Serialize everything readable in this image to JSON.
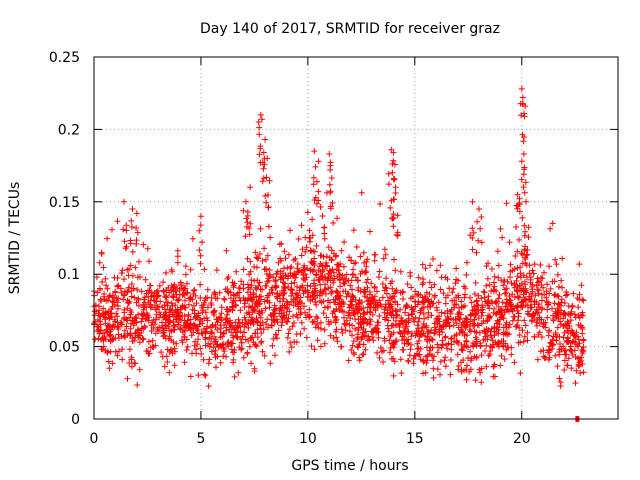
{
  "chart_data": {
    "type": "scatter",
    "title": "Day 140 of 2017, SRMTID for receiver graz",
    "xlabel": "GPS time / hours",
    "ylabel": "SRMTID / TECUs",
    "xlim": [
      0,
      24.5
    ],
    "ylim": [
      0,
      0.25
    ],
    "xticks": [
      0,
      5,
      10,
      15,
      20
    ],
    "xtick_labels": [
      "0",
      "5",
      "10",
      "15",
      "20"
    ],
    "yticks": [
      0,
      0.05,
      0.1,
      0.15,
      0.2,
      0.25
    ],
    "ytick_labels": [
      "0",
      "0.05",
      "0.1",
      "0.15",
      "0.2",
      "0.25"
    ],
    "grid": true,
    "marker": "+",
    "color": "#ff0000",
    "series": [
      {
        "name": "SRMTID",
        "description": "dense cloud of measurements between 0 and ~22.9 h, mostly 0.02–0.12 TECU with spikes",
        "envelope": [
          {
            "t": 0.0,
            "mean": 0.065,
            "spread": 0.025
          },
          {
            "t": 1.0,
            "mean": 0.07,
            "spread": 0.028
          },
          {
            "t": 2.0,
            "mean": 0.068,
            "spread": 0.028
          },
          {
            "t": 3.0,
            "mean": 0.07,
            "spread": 0.025
          },
          {
            "t": 4.0,
            "mean": 0.072,
            "spread": 0.025
          },
          {
            "t": 5.0,
            "mean": 0.065,
            "spread": 0.025
          },
          {
            "t": 6.0,
            "mean": 0.065,
            "spread": 0.025
          },
          {
            "t": 7.0,
            "mean": 0.07,
            "spread": 0.028
          },
          {
            "t": 8.0,
            "mean": 0.082,
            "spread": 0.03
          },
          {
            "t": 9.0,
            "mean": 0.085,
            "spread": 0.028
          },
          {
            "t": 10.0,
            "mean": 0.09,
            "spread": 0.03
          },
          {
            "t": 11.0,
            "mean": 0.09,
            "spread": 0.03
          },
          {
            "t": 12.0,
            "mean": 0.078,
            "spread": 0.028
          },
          {
            "t": 13.0,
            "mean": 0.07,
            "spread": 0.028
          },
          {
            "t": 14.0,
            "mean": 0.068,
            "spread": 0.028
          },
          {
            "t": 15.0,
            "mean": 0.068,
            "spread": 0.027
          },
          {
            "t": 16.0,
            "mean": 0.065,
            "spread": 0.026
          },
          {
            "t": 17.0,
            "mean": 0.065,
            "spread": 0.027
          },
          {
            "t": 18.0,
            "mean": 0.062,
            "spread": 0.026
          },
          {
            "t": 19.0,
            "mean": 0.068,
            "spread": 0.028
          },
          {
            "t": 20.0,
            "mean": 0.085,
            "spread": 0.03
          },
          {
            "t": 21.0,
            "mean": 0.075,
            "spread": 0.028
          },
          {
            "t": 22.0,
            "mean": 0.062,
            "spread": 0.026
          },
          {
            "t": 22.9,
            "mean": 0.055,
            "spread": 0.022
          }
        ],
        "spikes": [
          {
            "t": 1.4,
            "y": 0.15
          },
          {
            "t": 1.8,
            "y": 0.145
          },
          {
            "t": 2.0,
            "y": 0.142
          },
          {
            "t": 5.0,
            "y": 0.14
          },
          {
            "t": 7.1,
            "y": 0.15
          },
          {
            "t": 7.3,
            "y": 0.16
          },
          {
            "t": 7.8,
            "y": 0.21
          },
          {
            "t": 7.85,
            "y": 0.207
          },
          {
            "t": 8.0,
            "y": 0.193
          },
          {
            "t": 8.1,
            "y": 0.18
          },
          {
            "t": 10.3,
            "y": 0.185
          },
          {
            "t": 10.5,
            "y": 0.178
          },
          {
            "t": 11.0,
            "y": 0.183
          },
          {
            "t": 11.05,
            "y": 0.175
          },
          {
            "t": 13.9,
            "y": 0.186
          },
          {
            "t": 14.0,
            "y": 0.184
          },
          {
            "t": 13.95,
            "y": 0.17
          },
          {
            "t": 14.1,
            "y": 0.16
          },
          {
            "t": 17.7,
            "y": 0.15
          },
          {
            "t": 18.0,
            "y": 0.145
          },
          {
            "t": 19.8,
            "y": 0.155
          },
          {
            "t": 20.0,
            "y": 0.228
          },
          {
            "t": 20.05,
            "y": 0.222
          },
          {
            "t": 20.1,
            "y": 0.183
          },
          {
            "t": 20.0,
            "y": 0.178
          },
          {
            "t": 20.2,
            "y": 0.15
          }
        ],
        "outlier_at_zero": {
          "t": 22.6,
          "y": 0.0
        }
      }
    ]
  }
}
